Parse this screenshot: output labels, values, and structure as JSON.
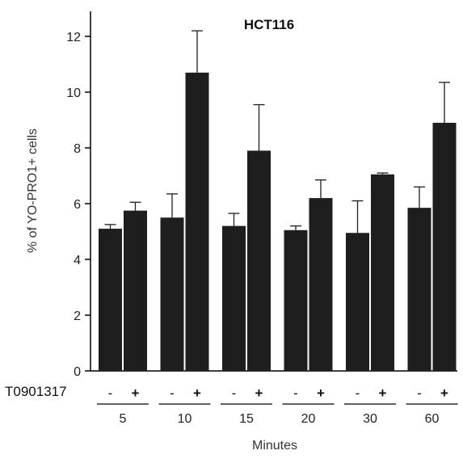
{
  "chart_data": {
    "type": "bar",
    "title": "HCT116",
    "xlabel": "Minutes",
    "ylabel": "% of YO-PRO1+ cells",
    "treatment_label": "T0901317",
    "treatment_signs": [
      "-",
      "+"
    ],
    "categories": [
      "5",
      "10",
      "15",
      "20",
      "30",
      "60"
    ],
    "series": [
      {
        "name": "-",
        "values": [
          5.1,
          5.5,
          5.2,
          5.05,
          4.95,
          5.85
        ],
        "errors": [
          0.15,
          0.85,
          0.45,
          0.15,
          1.15,
          0.75
        ]
      },
      {
        "name": "+",
        "values": [
          5.75,
          10.7,
          7.9,
          6.2,
          7.05,
          8.9
        ],
        "errors": [
          0.3,
          1.5,
          1.65,
          0.65,
          0.05,
          1.45
        ]
      }
    ],
    "ylim": [
      0,
      13
    ],
    "yticks": [
      0,
      2,
      4,
      6,
      8,
      10,
      12
    ],
    "grid": false,
    "bar_color": "#1e1e1e"
  }
}
